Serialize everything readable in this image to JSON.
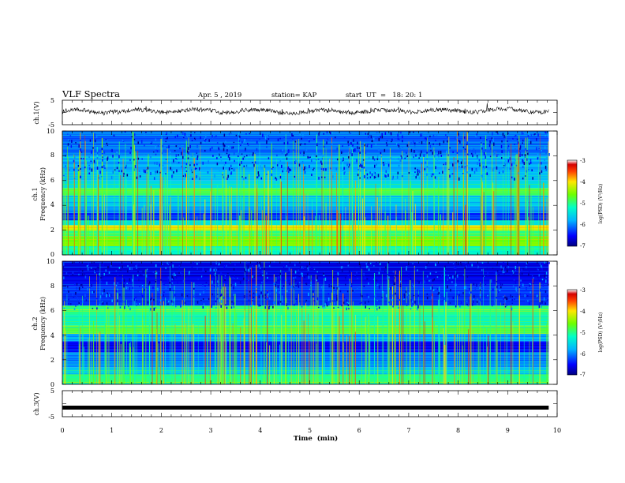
{
  "header": {
    "title": "VLF Spectra",
    "date": "Apr. 5  , 2019",
    "station": "station= KAP",
    "start_time": "start  UT  =   18: 20: 1"
  },
  "chart_data": [
    {
      "type": "line",
      "panel": "ch1-waveform",
      "ylabel": "ch.1(V)",
      "yticks": [
        "5",
        "-5"
      ],
      "ylim": [
        -5,
        5
      ],
      "xlim": [
        0,
        10
      ],
      "x_end": 9.83,
      "baseline_v": 0.5,
      "noise_v": 1.2,
      "color": "#000000"
    },
    {
      "type": "heatmap",
      "panel": "ch1-spectrogram",
      "ylabel": [
        "ch.1",
        "Frequency (kHz)"
      ],
      "yticks": [
        "0",
        "2",
        "4",
        "6",
        "8",
        "10"
      ],
      "ylim": [
        0,
        10
      ],
      "xlim": [
        0,
        10
      ],
      "x_end": 9.83,
      "colorbar": {
        "label": "log(PSD) (V²/Hz)",
        "ticks": [
          "-3",
          "-4",
          "-5",
          "-6",
          "-7"
        ],
        "range": [
          -7,
          -3
        ]
      },
      "bands_khz": [
        {
          "from": 0.0,
          "to": 0.7,
          "level": -5.2
        },
        {
          "from": 0.7,
          "to": 1.5,
          "level": -4.6
        },
        {
          "from": 1.5,
          "to": 2.0,
          "level": -5.0
        },
        {
          "from": 2.0,
          "to": 2.4,
          "level": -4.1
        },
        {
          "from": 2.4,
          "to": 2.8,
          "level": -5.4
        },
        {
          "from": 2.8,
          "to": 3.4,
          "level": -6.4
        },
        {
          "from": 3.4,
          "to": 3.9,
          "level": -5.9
        },
        {
          "from": 3.9,
          "to": 4.8,
          "level": -5.6
        },
        {
          "from": 4.8,
          "to": 5.4,
          "level": -4.9
        },
        {
          "from": 5.4,
          "to": 6.0,
          "level": -5.5
        },
        {
          "from": 6.0,
          "to": 8.0,
          "level": -5.8
        },
        {
          "from": 8.0,
          "to": 10.0,
          "level": -6.1
        }
      ]
    },
    {
      "type": "heatmap",
      "panel": "ch2-spectrogram",
      "ylabel": [
        "ch.2",
        "Frequency (kHz)"
      ],
      "yticks": [
        "0",
        "2",
        "4",
        "6",
        "8",
        "10"
      ],
      "ylim": [
        0,
        10
      ],
      "xlim": [
        0,
        10
      ],
      "x_end": 9.83,
      "colorbar": {
        "label": "log(PSD) (V²/Hz)",
        "ticks": [
          "-3",
          "-4",
          "-5",
          "-6",
          "-7"
        ],
        "range": [
          -7,
          -3
        ]
      },
      "bands_khz": [
        {
          "from": 0.0,
          "to": 0.8,
          "level": -5.0
        },
        {
          "from": 0.8,
          "to": 1.4,
          "level": -5.6
        },
        {
          "from": 1.4,
          "to": 2.6,
          "level": -6.0
        },
        {
          "from": 2.6,
          "to": 3.5,
          "level": -6.5
        },
        {
          "from": 3.5,
          "to": 4.1,
          "level": -5.8
        },
        {
          "from": 4.1,
          "to": 4.8,
          "level": -4.9
        },
        {
          "from": 4.8,
          "to": 5.6,
          "level": -5.3
        },
        {
          "from": 5.6,
          "to": 6.4,
          "level": -5.0
        },
        {
          "from": 6.4,
          "to": 8.0,
          "level": -6.3
        },
        {
          "from": 8.0,
          "to": 10.0,
          "level": -6.6
        }
      ]
    },
    {
      "type": "line",
      "panel": "ch3-waveform",
      "ylabel": "ch.3(V)",
      "yticks": [
        "5",
        "-5"
      ],
      "ylim": [
        -5,
        5
      ],
      "xlim": [
        0,
        10
      ],
      "xlabel": "Time  (min)",
      "xticks": [
        "0",
        "1",
        "2",
        "3",
        "4",
        "5",
        "6",
        "7",
        "8",
        "9",
        "10"
      ],
      "x_end": 9.83,
      "baseline_v": -1.5,
      "color": "#000000"
    }
  ]
}
